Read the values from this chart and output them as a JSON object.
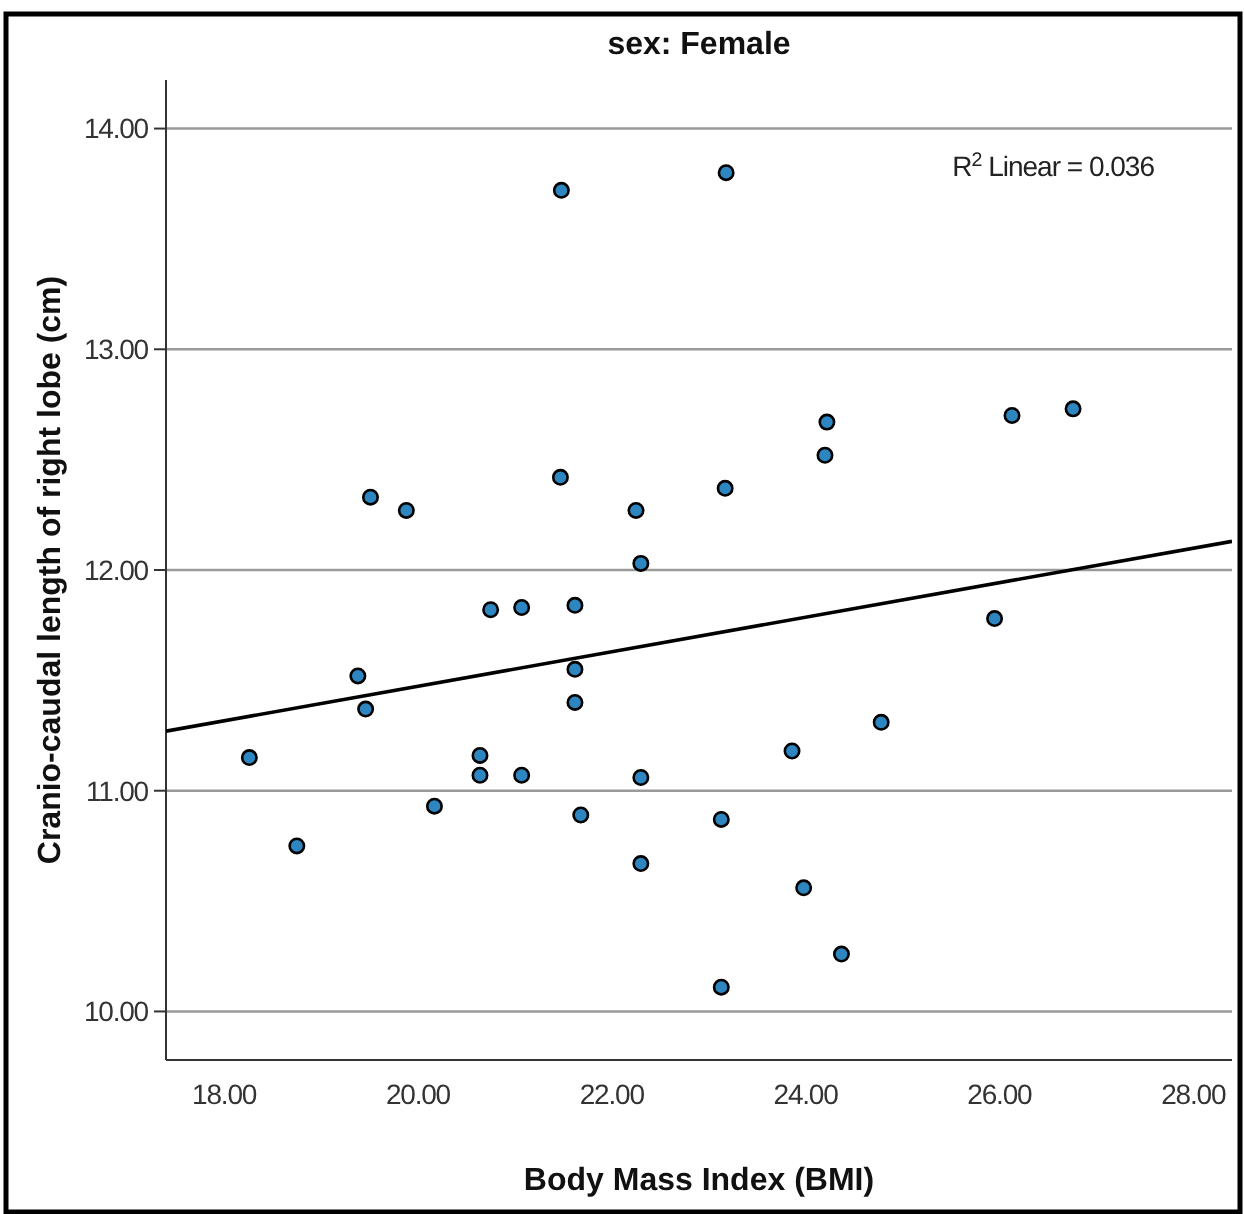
{
  "chart_data": {
    "type": "scatter",
    "title": "sex: Female",
    "xlabel": "Body Mass Index (BMI)",
    "ylabel": "Cranio-caudal length of right lobe (cm)",
    "annotations": [
      "R$^{2}$ Linear = 0.036"
    ],
    "xlim": [
      17.4,
      28.4
    ],
    "xticks": [
      {
        "value": 18,
        "label": "18.00"
      },
      {
        "value": 20,
        "label": "20.00"
      },
      {
        "value": 22,
        "label": "22.00"
      },
      {
        "value": 24,
        "label": "24.00"
      },
      {
        "value": 26,
        "label": "26.00"
      },
      {
        "value": 28,
        "label": "28.00"
      }
    ],
    "ylim": [
      9.78,
      14.22
    ],
    "yticks": [
      {
        "value": 10,
        "label": "10.00"
      },
      {
        "value": 11,
        "label": "11.00"
      },
      {
        "value": 12,
        "label": "12.00"
      },
      {
        "value": 13,
        "label": "13.00"
      },
      {
        "value": 14,
        "label": "14.00"
      }
    ],
    "grid": "y",
    "marker": "circle",
    "series": [
      {
        "color": "#2e86c1",
        "x": [
          19.51,
          19.88,
          21.47,
          22.25,
          22.3,
          20.75,
          21.07,
          21.62,
          19.38,
          19.46,
          21.62,
          21.62,
          18.26,
          20.64,
          20.64,
          21.07,
          22.3,
          21.48,
          23.18,
          24.22,
          24.2,
          23.17,
          26.13,
          26.76,
          25.95,
          24.78,
          23.86,
          18.75,
          20.17,
          21.68,
          23.13,
          22.3,
          23.98,
          24.37,
          23.13
        ],
        "values": [
          12.33,
          12.27,
          12.42,
          12.27,
          12.03,
          11.82,
          11.83,
          11.84,
          11.52,
          11.37,
          11.55,
          11.4,
          11.15,
          11.16,
          11.07,
          11.07,
          11.06,
          13.72,
          13.8,
          12.67,
          12.52,
          12.37,
          12.7,
          12.73,
          11.78,
          11.31,
          11.18,
          10.75,
          10.93,
          10.89,
          10.87,
          10.67,
          10.56,
          10.26,
          10.11
        ]
      },
      {
        "type": "line",
        "color": "#000000",
        "marker": "none",
        "x": [
          17.4,
          28.4
        ],
        "values": [
          11.27,
          12.13
        ]
      }
    ]
  }
}
